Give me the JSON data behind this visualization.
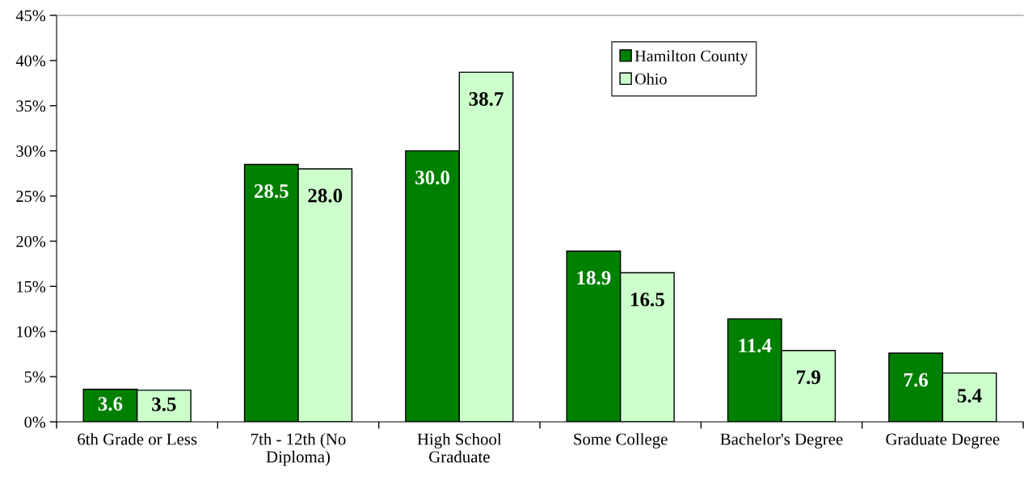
{
  "chart_data": {
    "type": "bar",
    "categories": [
      "6th Grade or Less",
      "7th - 12th (No\nDiploma)",
      "High School\nGraduate",
      "Some College",
      "Bachelor's Degree",
      "Graduate Degree"
    ],
    "series": [
      {
        "name": "Hamilton County",
        "color": "#008000",
        "values": [
          3.6,
          28.5,
          30.0,
          18.9,
          11.4,
          7.6
        ],
        "value_labels": [
          "3.6",
          "28.5",
          "30.0",
          "18.9",
          "11.4",
          "7.6"
        ]
      },
      {
        "name": "Ohio",
        "color": "#ccffcc",
        "values": [
          3.5,
          28.0,
          38.7,
          16.5,
          7.9,
          5.4
        ],
        "value_labels": [
          "3.5",
          "28.0",
          "38.7",
          "16.5",
          "7.9",
          "5.4"
        ]
      }
    ],
    "ylim": [
      0,
      45
    ],
    "yticks": [
      {
        "value": 0,
        "label": "0%"
      },
      {
        "value": 5,
        "label": "5%"
      },
      {
        "value": 10,
        "label": "10%"
      },
      {
        "value": 15,
        "label": "15%"
      },
      {
        "value": 20,
        "label": "20%"
      },
      {
        "value": 25,
        "label": "25%"
      },
      {
        "value": 30,
        "label": "30%"
      },
      {
        "value": 35,
        "label": "35%"
      },
      {
        "value": 40,
        "label": "40%"
      },
      {
        "value": 45,
        "label": "45%"
      }
    ],
    "legend": "top right",
    "grid": false
  }
}
